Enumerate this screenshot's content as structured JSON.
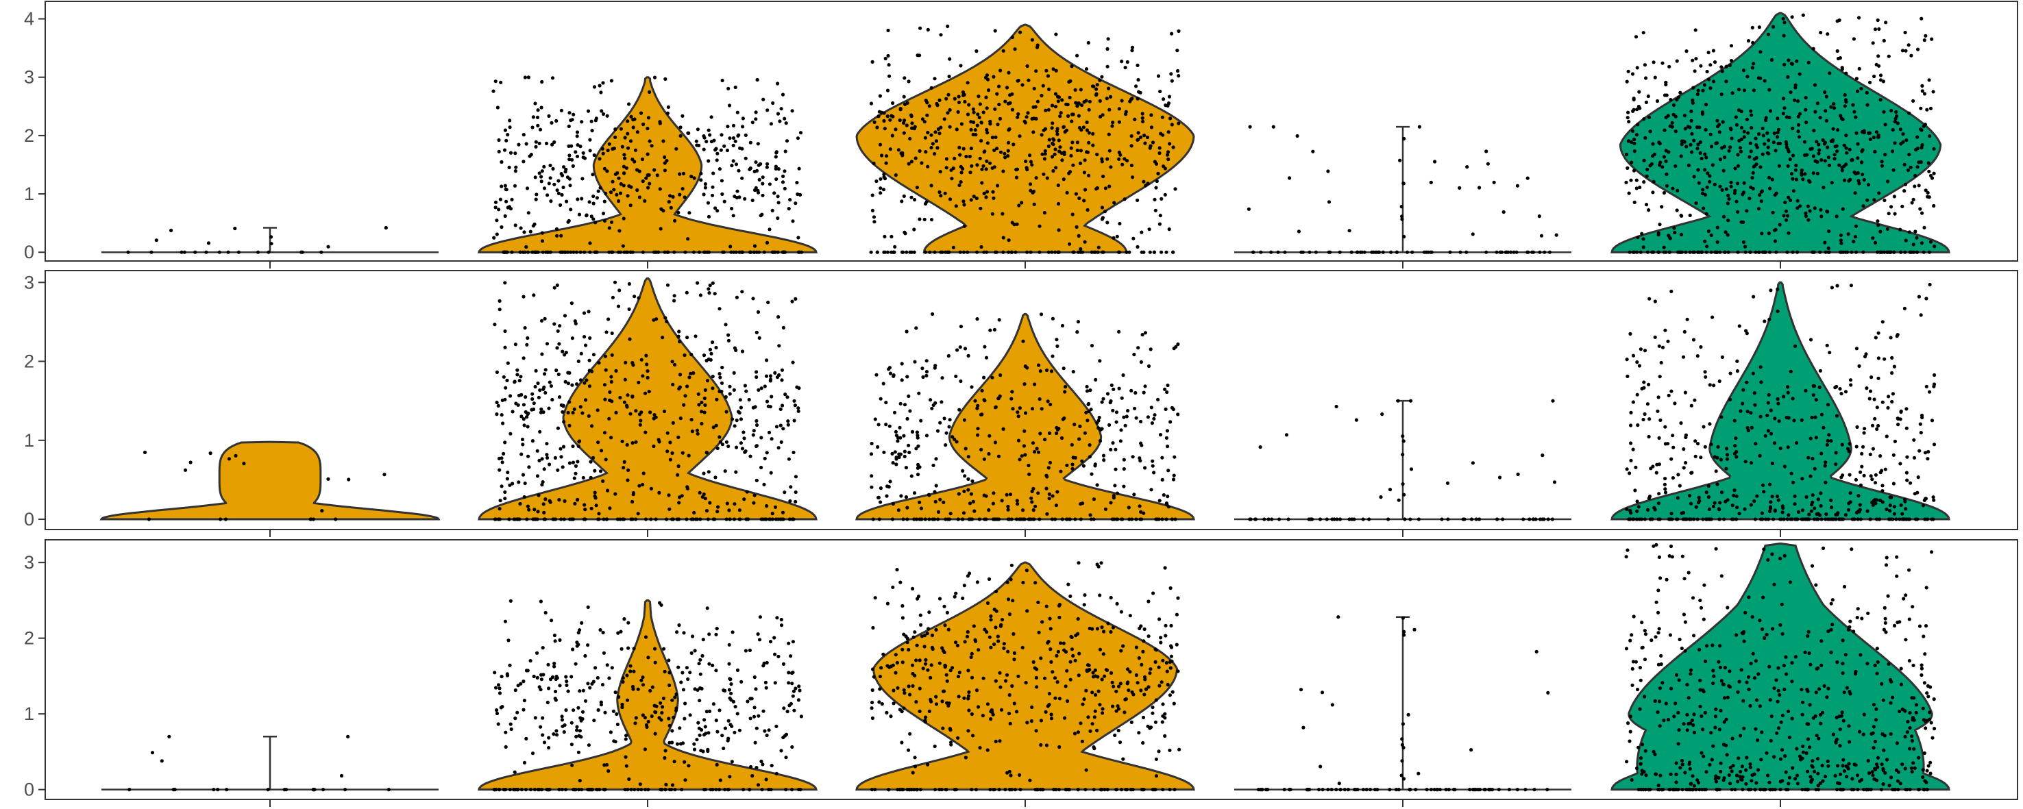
{
  "chart_data": {
    "type": "violin",
    "grid": false,
    "legend": "none",
    "categories": [
      "",
      "",
      "",
      "",
      ""
    ],
    "group_colors": [
      "#E69F00",
      "#E69F00",
      "#E69F00",
      "#E69F00",
      "#009E73"
    ],
    "outline_color": "#333333",
    "point_color": "#000000",
    "panels": [
      {
        "ylim": [
          -0.15,
          4.3
        ],
        "yticks": [
          "0",
          "1",
          "2",
          "3",
          "4"
        ],
        "groups": [
          {
            "kind": "spike",
            "max": 0.42,
            "points": 22,
            "nonzero_frac": 0.35
          },
          {
            "kind": "violin",
            "max": 3.0,
            "mode": 1.5,
            "zero_w": 1.0,
            "mode_w": 0.32,
            "neck_w": 0.12,
            "neck_y": 0.35,
            "points": 520,
            "nonzero_frac": 0.82
          },
          {
            "kind": "violin",
            "max": 3.9,
            "mode": 2.0,
            "zero_w": 0.6,
            "mode_w": 1.0,
            "neck_w": 0.09,
            "neck_y": 0.3,
            "points": 640,
            "nonzero_frac": 0.9
          },
          {
            "kind": "spike",
            "max": 2.15,
            "points": 90,
            "nonzero_frac": 0.3
          },
          {
            "kind": "violin",
            "max": 4.1,
            "mode": 1.85,
            "zero_w": 1.0,
            "mode_w": 0.95,
            "neck_w": 0.14,
            "neck_y": 0.3,
            "points": 760,
            "nonzero_frac": 0.88
          }
        ]
      },
      {
        "ylim": [
          -0.13,
          3.15
        ],
        "yticks": [
          "0",
          "1",
          "2",
          "3"
        ],
        "groups": [
          {
            "kind": "violin",
            "max": 0.98,
            "mode": 0.55,
            "zero_w": 1.0,
            "mode_w": 0.3,
            "neck_w": 0.3,
            "neck_y": 0.4,
            "points": 18,
            "nonzero_frac": 0.5,
            "flat_top": true
          },
          {
            "kind": "violin",
            "max": 3.05,
            "mode": 1.3,
            "zero_w": 1.0,
            "mode_w": 0.5,
            "neck_w": 0.12,
            "neck_y": 0.35,
            "points": 620,
            "nonzero_frac": 0.85
          },
          {
            "kind": "violin",
            "max": 2.6,
            "mode": 1.05,
            "zero_w": 1.0,
            "mode_w": 0.45,
            "neck_w": 0.12,
            "neck_y": 0.32,
            "points": 480,
            "nonzero_frac": 0.8
          },
          {
            "kind": "spike",
            "max": 1.5,
            "points": 70,
            "nonzero_frac": 0.3
          },
          {
            "kind": "violin",
            "max": 3.0,
            "mode": 0.9,
            "zero_w": 1.0,
            "mode_w": 0.42,
            "neck_w": 0.14,
            "neck_y": 0.22,
            "points": 560,
            "nonzero_frac": 0.82
          }
        ]
      },
      {
        "ylim": [
          -0.13,
          3.3
        ],
        "yticks": [
          "0",
          "1",
          "2",
          "3"
        ],
        "groups": [
          {
            "kind": "spike",
            "max": 0.7,
            "points": 20,
            "nonzero_frac": 0.35
          },
          {
            "kind": "violin",
            "max": 2.5,
            "mode": 1.2,
            "zero_w": 1.0,
            "mode_w": 0.18,
            "neck_w": 0.1,
            "neck_y": 0.4,
            "points": 470,
            "nonzero_frac": 0.82
          },
          {
            "kind": "violin",
            "max": 3.0,
            "mode": 1.6,
            "zero_w": 1.0,
            "mode_w": 0.9,
            "neck_w": 0.12,
            "neck_y": 0.35,
            "points": 520,
            "nonzero_frac": 0.85
          },
          {
            "kind": "spike",
            "max": 2.28,
            "points": 90,
            "nonzero_frac": 0.3
          },
          {
            "kind": "violin",
            "max": 3.25,
            "mode": 1.0,
            "zero_w": 1.0,
            "mode_w": 0.9,
            "neck_w": 0.85,
            "neck_y": 0.3,
            "points": 640,
            "nonzero_frac": 0.85
          }
        ]
      }
    ]
  }
}
